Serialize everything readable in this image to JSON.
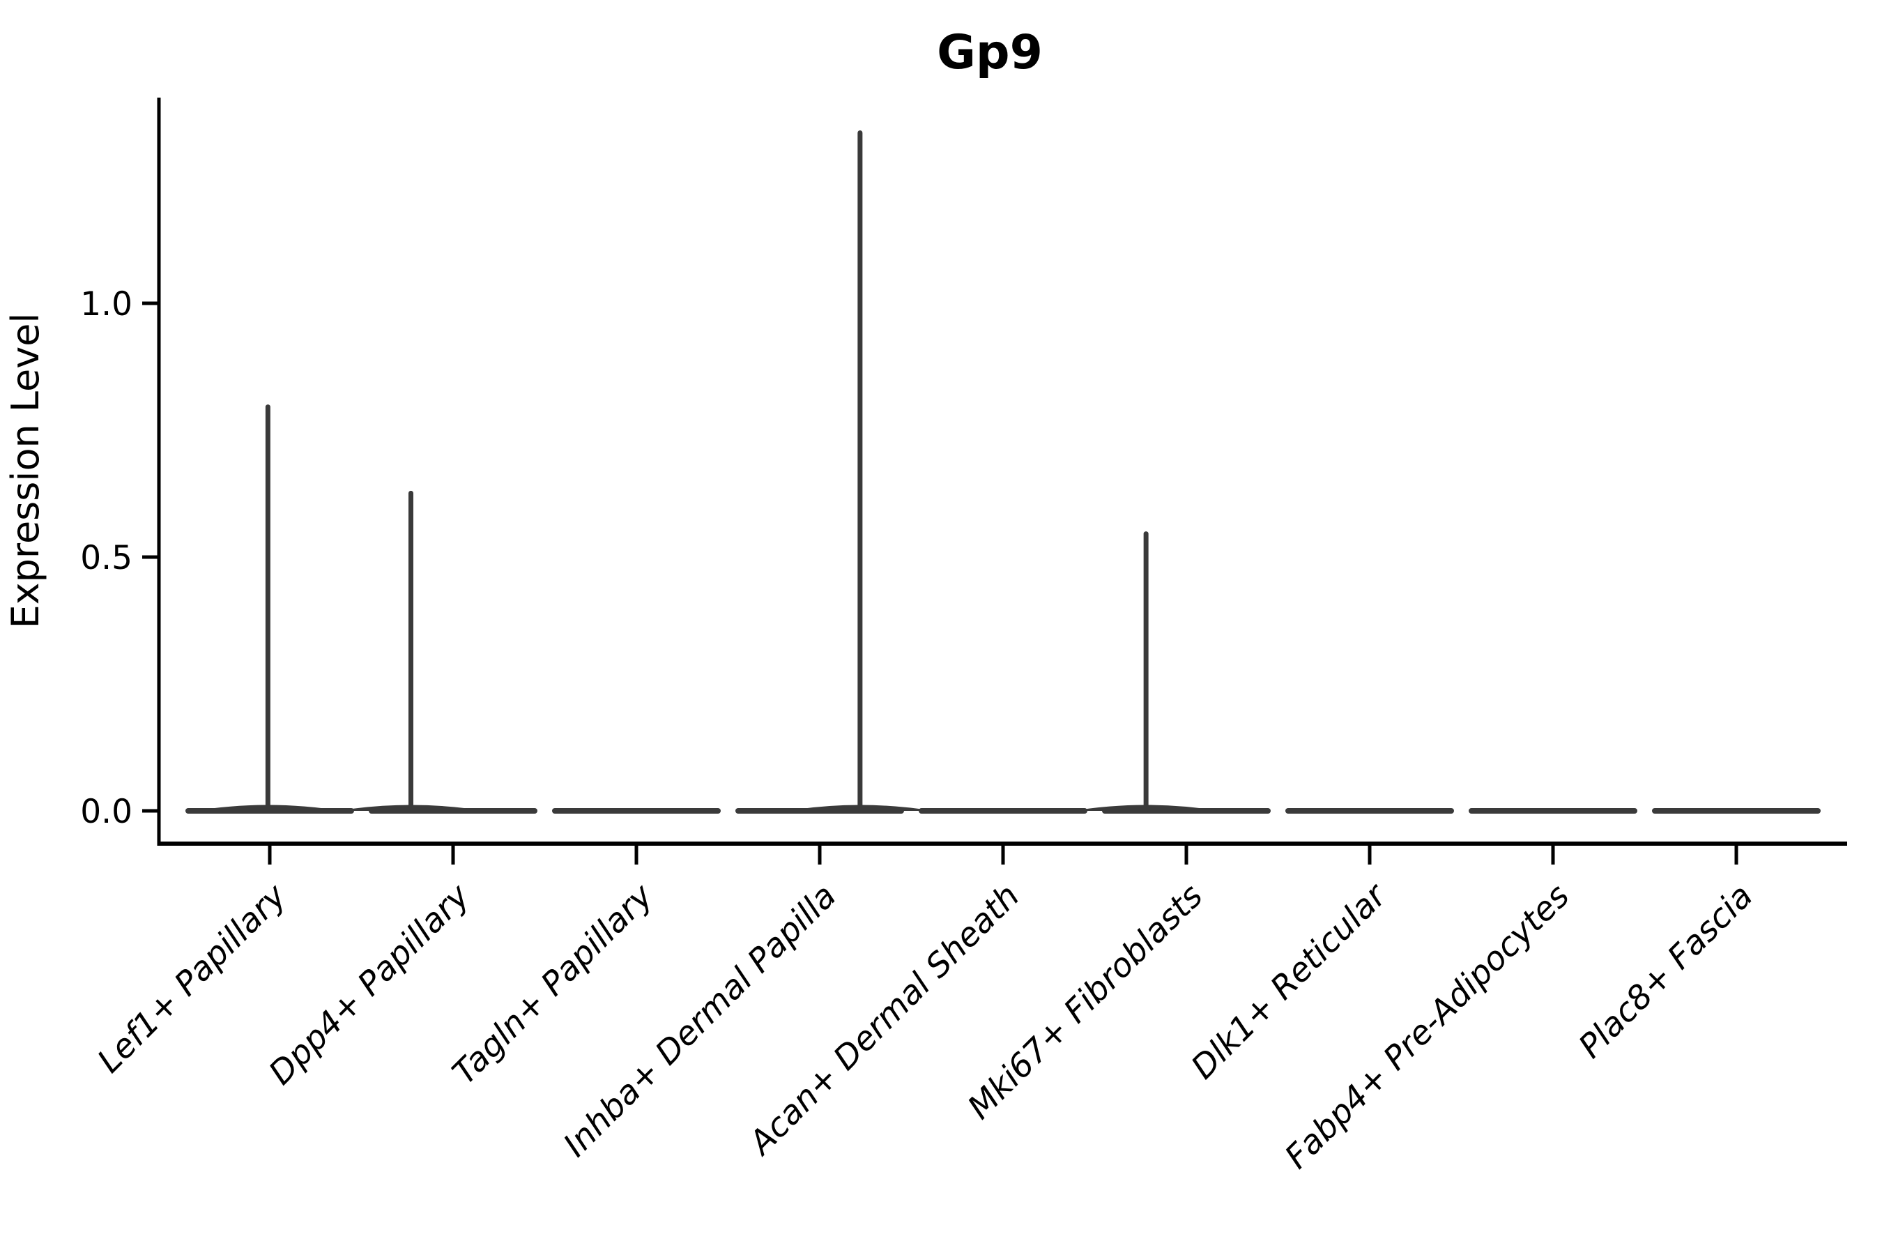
{
  "chart_data": {
    "type": "violin",
    "title": "Gp9",
    "ylabel": "Expression Level",
    "xlabel": "",
    "grid": false,
    "legend": "none",
    "ylim": [
      -0.067,
      1.41
    ],
    "ytick_labels": [
      "0.0",
      "0.5",
      "1.0"
    ],
    "ytick_values": [
      0.0,
      0.5,
      1.0
    ],
    "categories": [
      "Lef1+ Papillary",
      "Dpp4+ Papillary",
      "Tagln+ Papillary",
      "Inhba+ Dermal Papilla",
      "Acan+ Dermal Sheath",
      "Mki67+ Fibroblasts",
      "Dlk1+ Reticular",
      "Fabp4+ Pre-Adipocytes",
      "Plac8+ Fascia"
    ],
    "series": [
      {
        "category": "Lef1+ Papillary",
        "baseline_value": 0.0,
        "max_expression": 0.8,
        "peak_offset_frac": -0.01
      },
      {
        "category": "Dpp4+ Papillary",
        "baseline_value": 0.0,
        "max_expression": 0.63,
        "peak_offset_frac": -0.23
      },
      {
        "category": "Tagln+ Papillary",
        "baseline_value": 0.0,
        "max_expression": 0.0,
        "peak_offset_frac": 0
      },
      {
        "category": "Inhba+ Dermal Papilla",
        "baseline_value": 0.0,
        "max_expression": 1.34,
        "peak_offset_frac": 0.22
      },
      {
        "category": "Acan+ Dermal Sheath",
        "baseline_value": 0.0,
        "max_expression": 0.0,
        "peak_offset_frac": 0
      },
      {
        "category": "Mki67+ Fibroblasts",
        "baseline_value": 0.0,
        "max_expression": 0.55,
        "peak_offset_frac": -0.22
      },
      {
        "category": "Dlk1+ Reticular",
        "baseline_value": 0.0,
        "max_expression": 0.0,
        "peak_offset_frac": 0
      },
      {
        "category": "Fabp4+ Pre-Adipocytes",
        "baseline_value": 0.0,
        "max_expression": 0.0,
        "peak_offset_frac": 0
      },
      {
        "category": "Plac8+ Fascia",
        "baseline_value": 0.0,
        "max_expression": 0.0,
        "peak_offset_frac": 0
      }
    ],
    "colors": {
      "violin": "#3a3a3a",
      "axis": "#000000",
      "text": "#000000",
      "background": "#ffffff"
    }
  }
}
